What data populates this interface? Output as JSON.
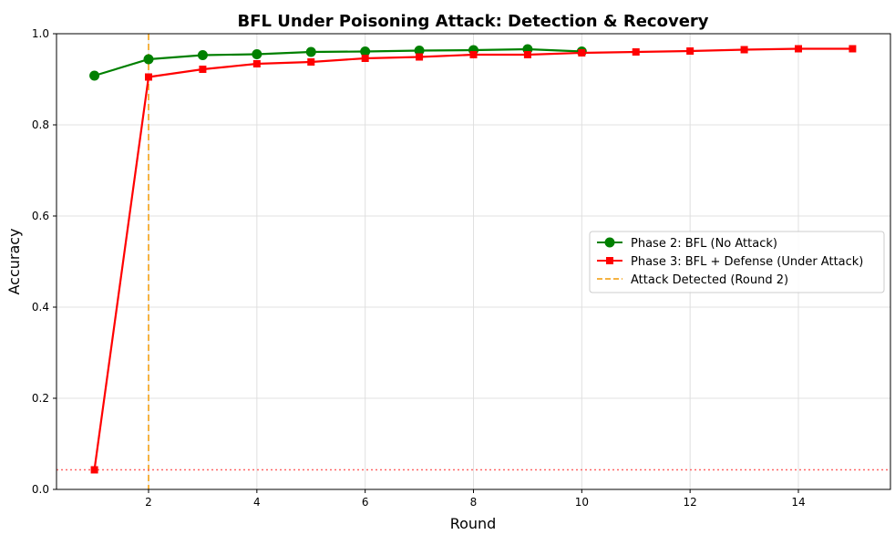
{
  "chart_data": {
    "type": "line",
    "title": "BFL Under Poisoning Attack: Detection & Recovery",
    "xlabel": "Round",
    "ylabel": "Accuracy",
    "xlim": [
      0.3,
      15.7
    ],
    "ylim": [
      0.0,
      1.0
    ],
    "xticks": [
      2,
      4,
      6,
      8,
      10,
      12,
      14
    ],
    "yticks": [
      0.0,
      0.2,
      0.4,
      0.6,
      0.8,
      1.0
    ],
    "xtick_labels": [
      "2",
      "4",
      "6",
      "8",
      "10",
      "12",
      "14"
    ],
    "ytick_labels": [
      "0.0",
      "0.2",
      "0.4",
      "0.6",
      "0.8",
      "1.0"
    ],
    "grid": true,
    "legend_position": "center-right",
    "series": [
      {
        "name": "Phase 2: BFL (No Attack)",
        "color": "#008000",
        "marker": "circle",
        "x": [
          1,
          2,
          3,
          4,
          5,
          6,
          7,
          8,
          9,
          10
        ],
        "y": [
          0.908,
          0.944,
          0.953,
          0.955,
          0.96,
          0.961,
          0.963,
          0.964,
          0.966,
          0.961
        ]
      },
      {
        "name": "Phase 3: BFL + Defense (Under Attack)",
        "color": "#ff0000",
        "marker": "square",
        "x": [
          1,
          2,
          3,
          4,
          5,
          6,
          7,
          8,
          9,
          10,
          11,
          12,
          13,
          14,
          15
        ],
        "y": [
          0.043,
          0.905,
          0.922,
          0.934,
          0.938,
          0.946,
          0.949,
          0.954,
          0.954,
          0.958,
          0.96,
          0.962,
          0.965,
          0.967,
          0.967
        ]
      }
    ],
    "reference_lines": [
      {
        "name": "Attack Detected (Round 2)",
        "orientation": "vertical",
        "value": 2,
        "color": "#f5b342",
        "style": "dashed",
        "in_legend": true
      },
      {
        "orientation": "horizontal",
        "value": 0.043,
        "color": "#ff6666",
        "style": "dotted",
        "in_legend": false
      }
    ]
  }
}
